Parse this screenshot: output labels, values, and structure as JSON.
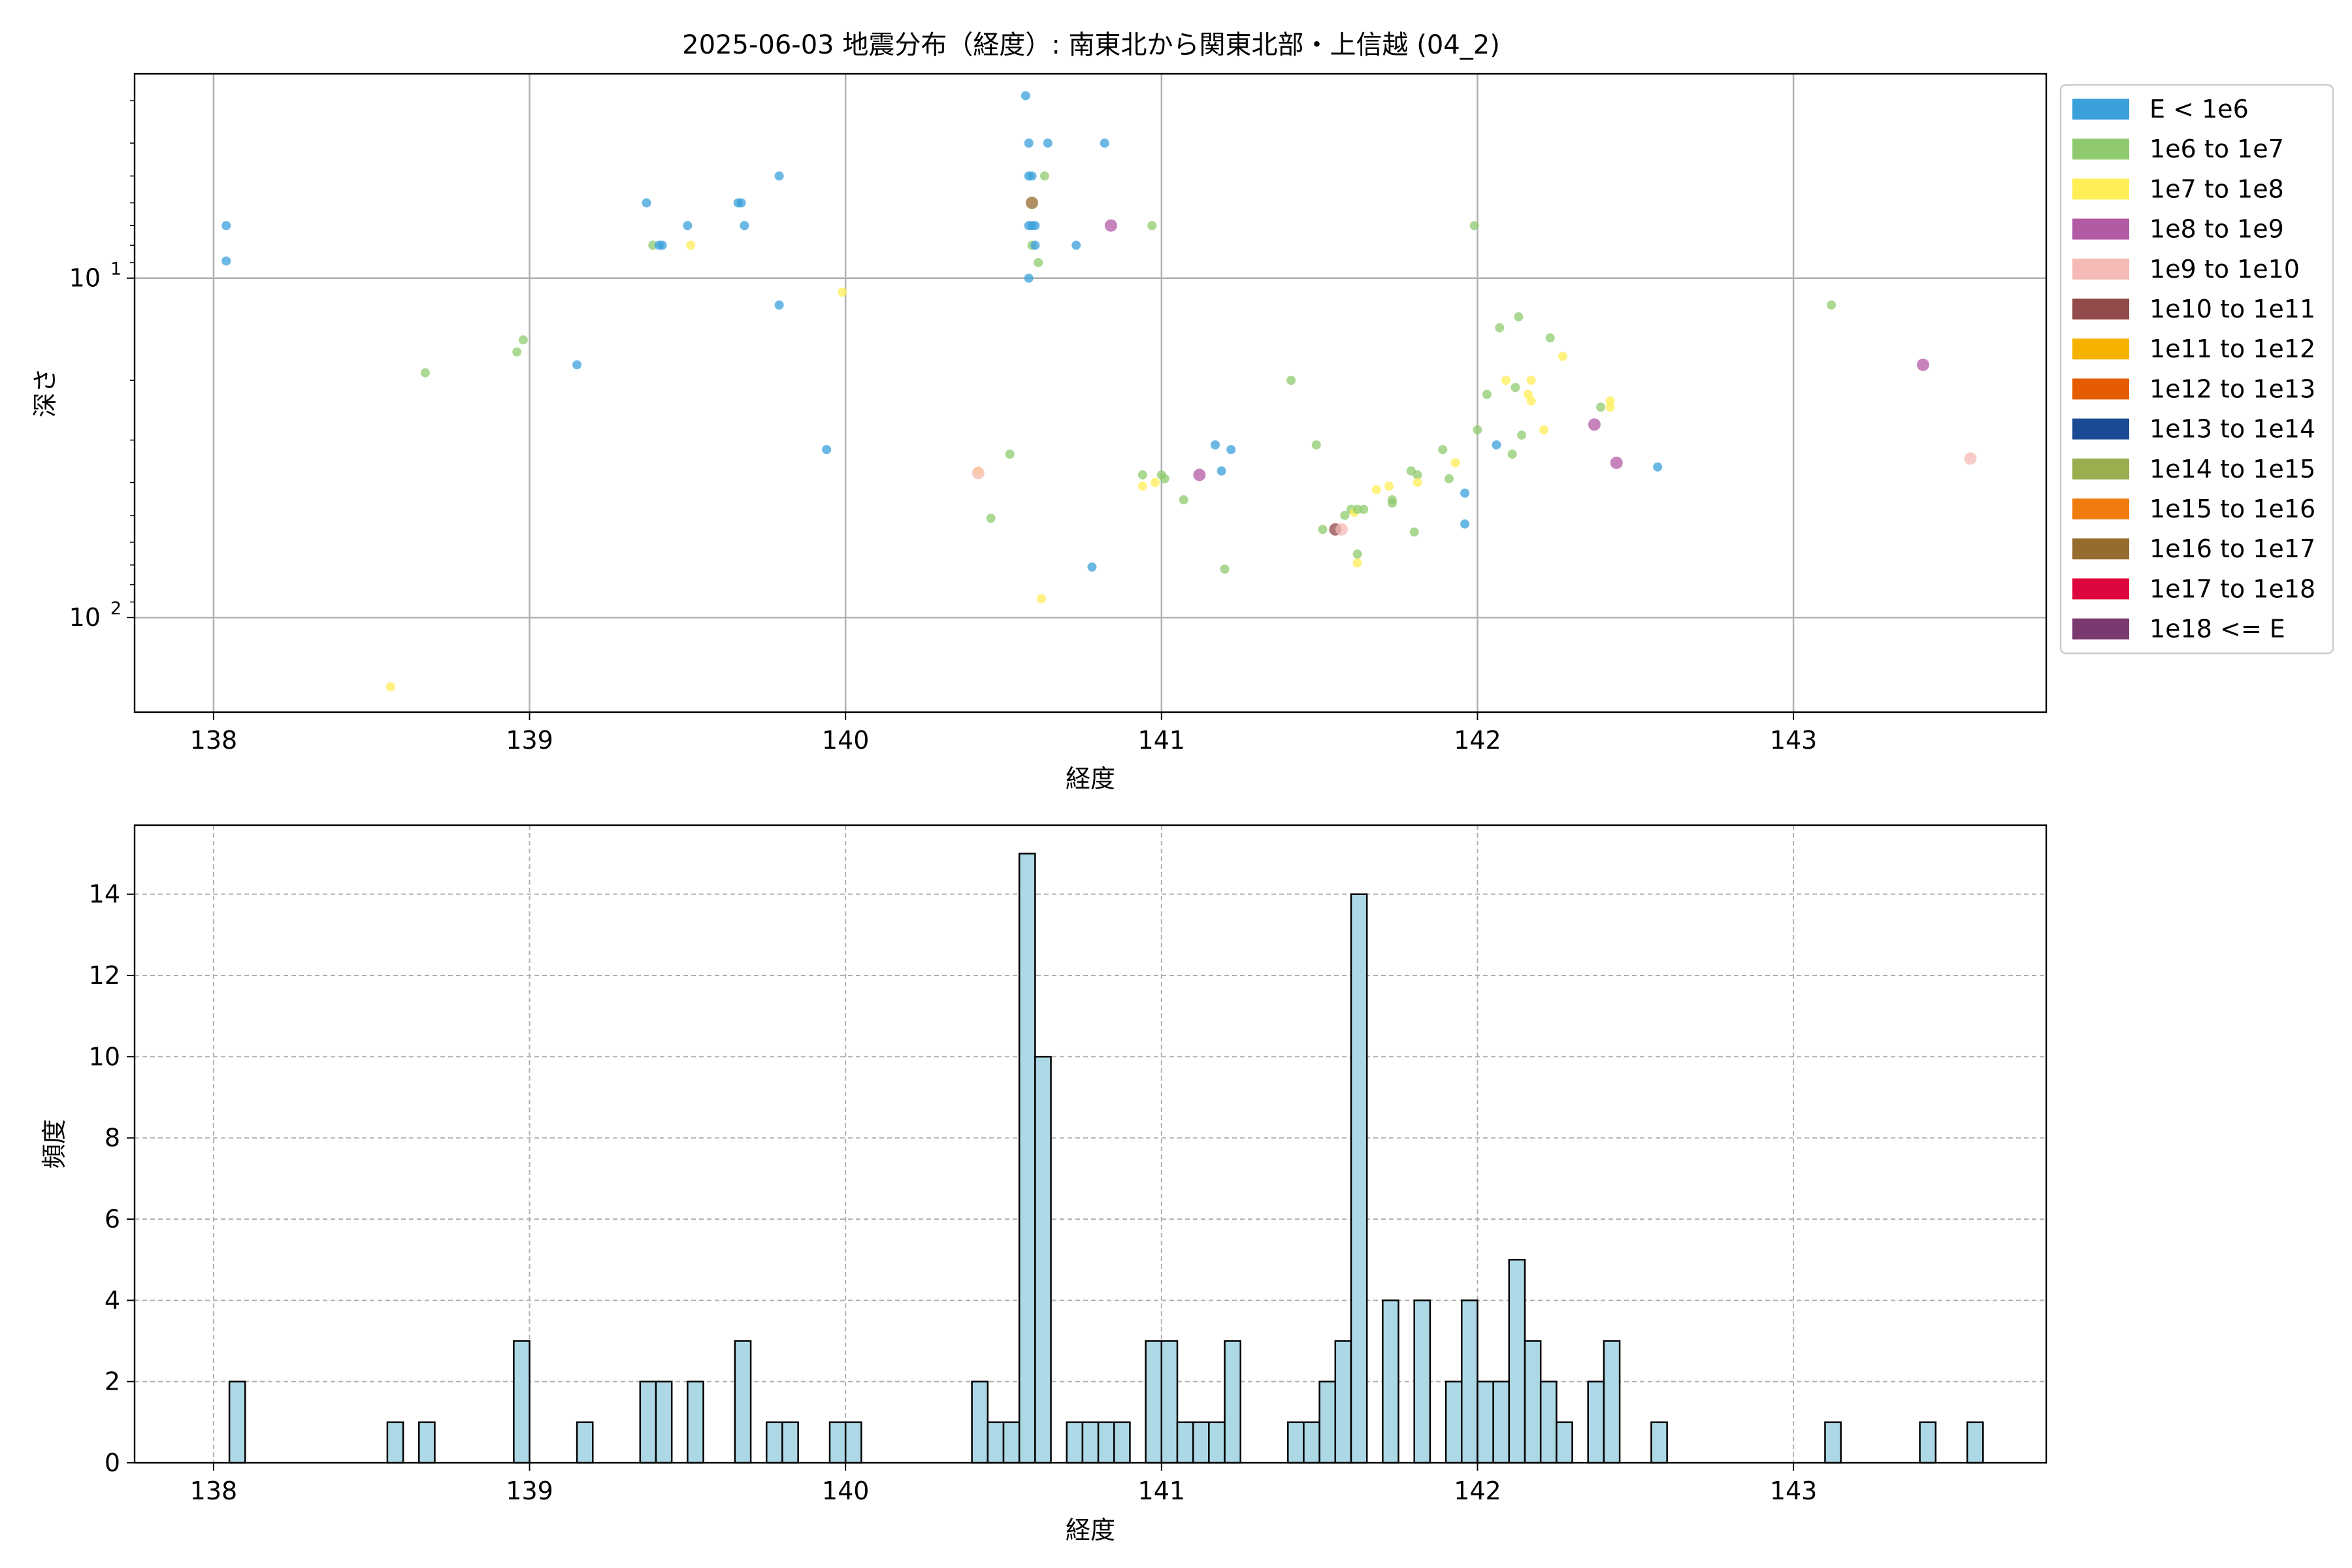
{
  "chart_data": [
    {
      "type": "scatter",
      "title": "2025-06-03 地震分布（経度）: 南東北から関東北部・上信越 (04_2)",
      "xlabel": "経度",
      "ylabel": "深さ",
      "xlim": [
        137.75,
        143.8
      ],
      "ylim": [
        190,
        2.5
      ],
      "yscale": "log",
      "y_inverted": true,
      "grid": true,
      "x_ticks": [
        138,
        139,
        140,
        141,
        142,
        143
      ],
      "y_tick_labels": [
        {
          "value": 10,
          "label": "10",
          "exp": "1"
        },
        {
          "value": 100,
          "label": "10",
          "exp": "2"
        }
      ],
      "legend": {
        "placement": "outside-right",
        "entries": [
          {
            "label": "E < 1e6",
            "color": "#3aa0dc"
          },
          {
            "label": "1e6 to 1e7",
            "color": "#8fcb6e"
          },
          {
            "label": "1e7 to 1e8",
            "color": "#ffee55"
          },
          {
            "label": "1e8 to 1e9",
            "color": "#b35aa5"
          },
          {
            "label": "1e9 to 1e10",
            "color": "#f5b9b6"
          },
          {
            "label": "1e10 to 1e11",
            "color": "#924a4a"
          },
          {
            "label": "1e11 to 1e12",
            "color": "#f5b300"
          },
          {
            "label": "1e12 to 1e13",
            "color": "#e65c00"
          },
          {
            "label": "1e13 to 1e14",
            "color": "#1a4a94"
          },
          {
            "label": "1e14 to 1e15",
            "color": "#9aae50"
          },
          {
            "label": "1e15 to 1e16",
            "color": "#f07c10"
          },
          {
            "label": "1e16 to 1e17",
            "color": "#956b2e"
          },
          {
            "label": "1e17 to 1e18",
            "color": "#dc063c"
          },
          {
            "label": "1e18 <= E",
            "color": "#7a3a70"
          }
        ]
      },
      "points": [
        [
          138.04,
          7.0,
          0
        ],
        [
          138.04,
          8.9,
          0
        ],
        [
          138.56,
          160,
          2
        ],
        [
          138.67,
          19,
          1
        ],
        [
          138.96,
          16.5,
          1
        ],
        [
          138.98,
          15.2,
          1
        ],
        [
          139.15,
          18,
          0
        ],
        [
          139.37,
          6.0,
          0
        ],
        [
          139.39,
          8.0,
          1
        ],
        [
          139.41,
          8.0,
          0
        ],
        [
          139.42,
          8.0,
          0
        ],
        [
          139.5,
          7.0,
          0
        ],
        [
          139.51,
          8.0,
          2
        ],
        [
          139.66,
          6.0,
          0
        ],
        [
          139.67,
          6.0,
          0
        ],
        [
          139.68,
          7.0,
          0
        ],
        [
          139.79,
          5.0,
          0
        ],
        [
          139.79,
          12.0,
          0
        ],
        [
          139.94,
          32,
          0
        ],
        [
          139.99,
          11,
          2
        ],
        [
          140.42,
          37,
          2
        ],
        [
          140.42,
          37.5,
          4
        ],
        [
          140.46,
          51,
          1
        ],
        [
          140.52,
          33,
          1
        ],
        [
          140.57,
          2.9,
          0
        ],
        [
          140.58,
          4.0,
          0
        ],
        [
          140.58,
          5.0,
          0
        ],
        [
          140.58,
          7.0,
          0
        ],
        [
          140.58,
          10,
          0
        ],
        [
          140.59,
          5.0,
          0
        ],
        [
          140.59,
          6.0,
          11
        ],
        [
          140.59,
          7.0,
          0
        ],
        [
          140.59,
          8.0,
          1
        ],
        [
          140.6,
          7.0,
          0
        ],
        [
          140.6,
          8.0,
          0
        ],
        [
          140.61,
          9.0,
          1
        ],
        [
          140.62,
          88,
          2
        ],
        [
          140.63,
          5.0,
          1
        ],
        [
          140.64,
          4.0,
          0
        ],
        [
          140.73,
          8.0,
          0
        ],
        [
          140.78,
          71,
          0
        ],
        [
          140.82,
          4.0,
          0
        ],
        [
          140.84,
          7.0,
          3
        ],
        [
          140.94,
          38,
          1
        ],
        [
          140.94,
          41,
          2
        ],
        [
          140.97,
          7.0,
          1
        ],
        [
          140.98,
          40,
          2
        ],
        [
          141.0,
          38,
          1
        ],
        [
          141.01,
          39,
          1
        ],
        [
          141.07,
          45,
          1
        ],
        [
          141.12,
          38,
          3
        ],
        [
          141.17,
          31,
          0
        ],
        [
          141.19,
          37,
          0
        ],
        [
          141.2,
          72,
          1
        ],
        [
          141.22,
          32,
          0
        ],
        [
          141.41,
          20,
          1
        ],
        [
          141.49,
          31,
          1
        ],
        [
          141.51,
          55,
          1
        ],
        [
          141.55,
          55,
          5
        ],
        [
          141.57,
          55,
          4
        ],
        [
          141.58,
          50,
          1
        ],
        [
          141.6,
          48,
          1
        ],
        [
          141.61,
          49,
          2
        ],
        [
          141.62,
          48,
          1
        ],
        [
          141.62,
          65,
          1
        ],
        [
          141.62,
          69,
          2
        ],
        [
          141.64,
          48,
          1
        ],
        [
          141.68,
          42,
          2
        ],
        [
          141.72,
          41,
          2
        ],
        [
          141.73,
          46,
          1
        ],
        [
          141.73,
          45,
          1
        ],
        [
          141.79,
          37,
          1
        ],
        [
          141.8,
          56,
          1
        ],
        [
          141.81,
          38,
          1
        ],
        [
          141.81,
          40,
          2
        ],
        [
          141.89,
          32,
          1
        ],
        [
          141.91,
          39,
          1
        ],
        [
          141.93,
          35,
          2
        ],
        [
          141.96,
          43,
          0
        ],
        [
          141.96,
          53,
          0
        ],
        [
          141.99,
          7.0,
          1
        ],
        [
          142.0,
          28,
          1
        ],
        [
          142.03,
          22,
          1
        ],
        [
          142.06,
          31,
          0
        ],
        [
          142.07,
          14,
          1
        ],
        [
          142.09,
          20,
          2
        ],
        [
          142.11,
          33,
          1
        ],
        [
          142.12,
          21,
          1
        ],
        [
          142.13,
          13,
          1
        ],
        [
          142.14,
          29,
          1
        ],
        [
          142.16,
          22,
          2
        ],
        [
          142.17,
          20,
          2
        ],
        [
          142.17,
          23,
          2
        ],
        [
          142.21,
          28,
          2
        ],
        [
          142.23,
          15,
          1
        ],
        [
          142.27,
          17,
          2
        ],
        [
          142.37,
          27,
          3
        ],
        [
          142.39,
          24,
          1
        ],
        [
          142.42,
          23,
          2
        ],
        [
          142.42,
          24,
          2
        ],
        [
          142.44,
          35,
          3
        ],
        [
          142.57,
          36,
          0
        ],
        [
          143.12,
          12,
          1
        ],
        [
          143.41,
          18,
          3
        ],
        [
          143.56,
          34,
          4
        ]
      ]
    },
    {
      "type": "bar",
      "title": "",
      "xlabel": "経度",
      "ylabel": "頻度",
      "xlim": [
        137.75,
        143.8
      ],
      "ylim": [
        0,
        15.7
      ],
      "grid": true,
      "x_ticks": [
        138,
        139,
        140,
        141,
        142,
        143
      ],
      "y_ticks": [
        0,
        2,
        4,
        6,
        8,
        10,
        12,
        14
      ],
      "bin_width": 0.05,
      "bar_color": "#add8e6",
      "bins": [
        [
          138.05,
          2
        ],
        [
          138.55,
          1
        ],
        [
          138.65,
          1
        ],
        [
          138.95,
          3
        ],
        [
          139.15,
          1
        ],
        [
          139.35,
          2
        ],
        [
          139.4,
          2
        ],
        [
          139.5,
          2
        ],
        [
          139.65,
          3
        ],
        [
          139.75,
          1
        ],
        [
          139.8,
          1
        ],
        [
          139.95,
          1
        ],
        [
          140.0,
          1
        ],
        [
          140.4,
          2
        ],
        [
          140.45,
          1
        ],
        [
          140.5,
          1
        ],
        [
          140.55,
          15
        ],
        [
          140.6,
          10
        ],
        [
          140.7,
          1
        ],
        [
          140.75,
          1
        ],
        [
          140.8,
          1
        ],
        [
          140.85,
          1
        ],
        [
          140.95,
          3
        ],
        [
          141.0,
          3
        ],
        [
          141.05,
          1
        ],
        [
          141.1,
          1
        ],
        [
          141.15,
          1
        ],
        [
          141.2,
          3
        ],
        [
          141.4,
          1
        ],
        [
          141.45,
          1
        ],
        [
          141.5,
          2
        ],
        [
          141.55,
          3
        ],
        [
          141.6,
          14
        ],
        [
          141.7,
          4
        ],
        [
          141.8,
          4
        ],
        [
          141.9,
          2
        ],
        [
          141.95,
          4
        ],
        [
          142.0,
          2
        ],
        [
          142.05,
          2
        ],
        [
          142.1,
          5
        ],
        [
          142.15,
          3
        ],
        [
          142.2,
          2
        ],
        [
          142.25,
          1
        ],
        [
          142.35,
          2
        ],
        [
          142.4,
          3
        ],
        [
          142.55,
          1
        ],
        [
          143.1,
          1
        ],
        [
          143.4,
          1
        ],
        [
          143.55,
          1
        ]
      ]
    }
  ]
}
